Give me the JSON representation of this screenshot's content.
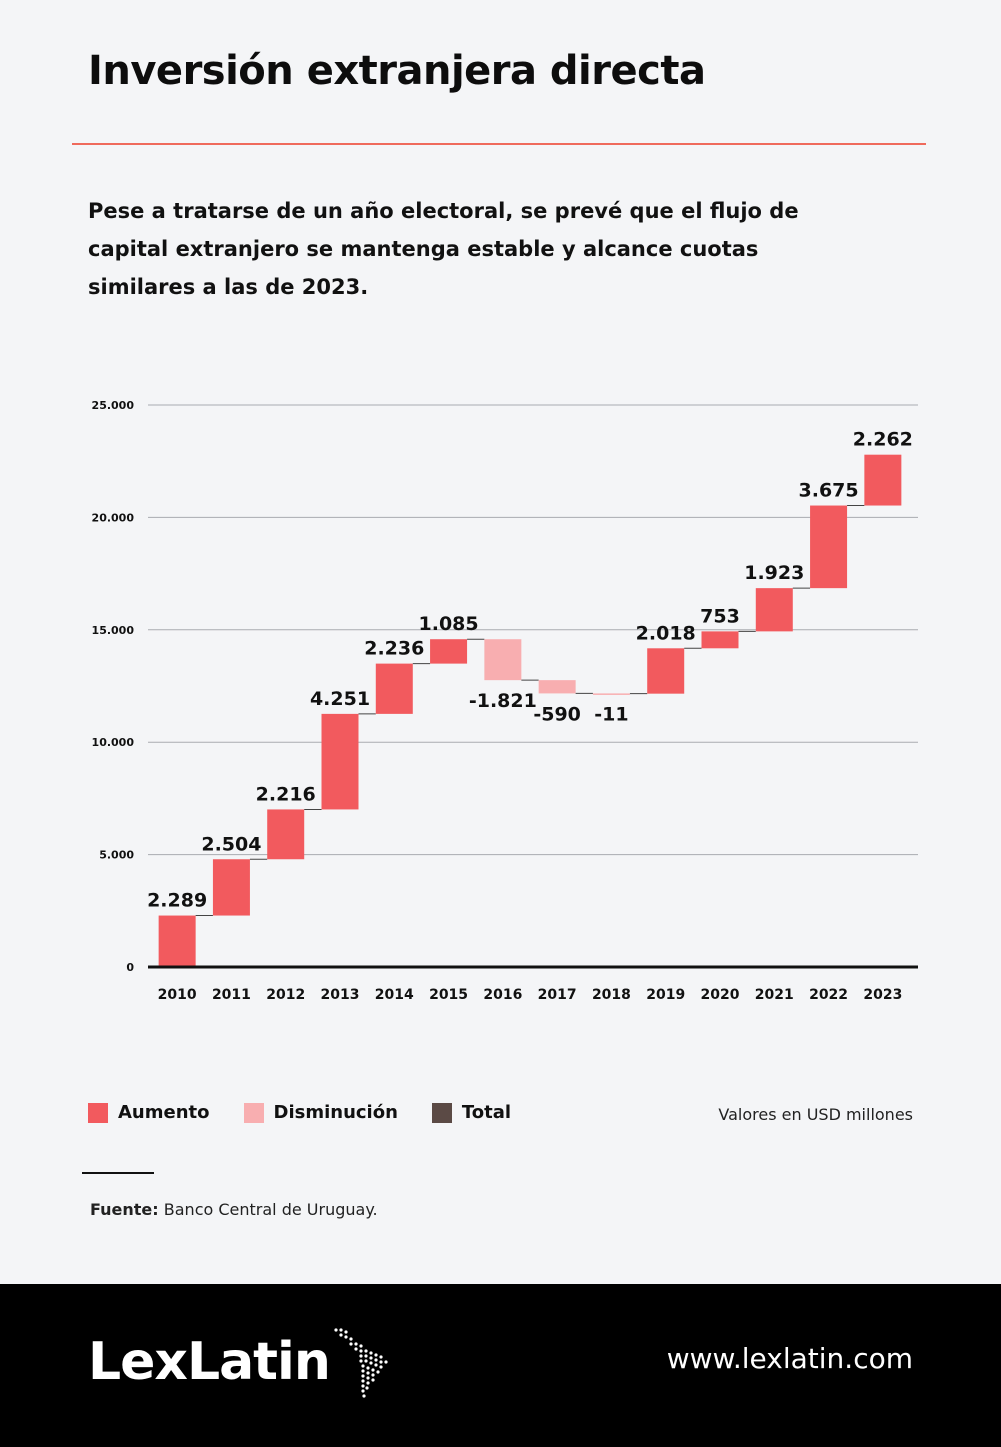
{
  "title": "Inversión extranjera directa",
  "subtitle": "Pese a tratarse de un año electoral, se prevé que el flujo de capital extranjero se mantenga estable y alcance cuotas similares a las de 2023.",
  "colors": {
    "increase": "#f25a5e",
    "decrease": "#f8aeb0",
    "total": "#5b4a45",
    "accent_rule": "#ef6a5c"
  },
  "chart_data": {
    "type": "waterfall",
    "categories": [
      "2010",
      "2011",
      "2012",
      "2013",
      "2014",
      "2015",
      "2016",
      "2017",
      "2018",
      "2019",
      "2020",
      "2021",
      "2022",
      "2023"
    ],
    "values": [
      2289,
      2504,
      2216,
      4251,
      2236,
      1085,
      -1821,
      -590,
      -11,
      2018,
      753,
      1923,
      3675,
      2262
    ],
    "labels": [
      "2.289",
      "2.504",
      "2.216",
      "4.251",
      "2.236",
      "1.085",
      "-1.821",
      "-590",
      "-11",
      "2.018",
      "753",
      "1.923",
      "3.675",
      "2.262"
    ],
    "ylim": [
      0,
      25000
    ],
    "yticks": [
      0,
      5000,
      10000,
      15000,
      20000,
      25000
    ],
    "ytick_labels": [
      "0",
      "5.000",
      "10.000",
      "15.000",
      "20.000",
      "25.000"
    ],
    "grid": true
  },
  "legend": {
    "items": [
      {
        "label": "Aumento",
        "color": "#f25a5e"
      },
      {
        "label": "Disminución",
        "color": "#f8aeb0"
      },
      {
        "label": "Total",
        "color": "#5b4a45"
      }
    ],
    "units": "Valores en USD millones"
  },
  "source": {
    "label": "Fuente:",
    "text": "Banco Central de Uruguay."
  },
  "footer": {
    "logo_text": "LexLatin",
    "logo_icon": "latin-america-dotted-map-icon",
    "url": "www.lexlatin.com"
  }
}
